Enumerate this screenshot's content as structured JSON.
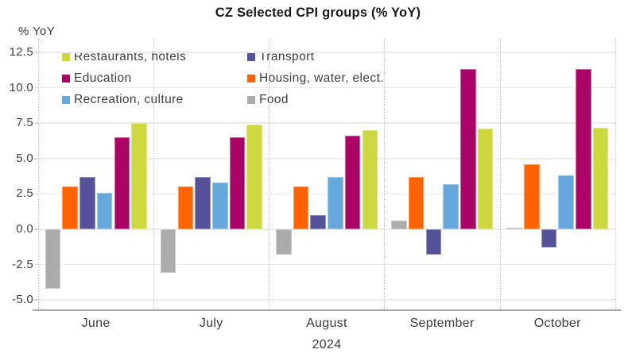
{
  "header": {
    "title": "CZ Selected CPI groups (% YoY)"
  },
  "axis": {
    "y_unit_label": "% YoY",
    "year_label": "2024"
  },
  "chart_data": {
    "type": "bar",
    "title": "CZ Selected CPI groups (% YoY)",
    "ylabel": "% YoY",
    "xlabel": "2024",
    "categories": [
      "June",
      "July",
      "August",
      "September",
      "October"
    ],
    "y_ticks": [
      {
        "v": 12.5,
        "label": "12.5"
      },
      {
        "v": 10.0,
        "label": "10.0"
      },
      {
        "v": 7.5,
        "label": "7.5"
      },
      {
        "v": 5.0,
        "label": "5.0"
      },
      {
        "v": 2.5,
        "label": "2.5"
      },
      {
        "v": 0.0,
        "label": "0.0"
      },
      {
        "v": -2.5,
        "label": "-2.5"
      },
      {
        "v": -5.0,
        "label": "-5.0"
      }
    ],
    "ylim": [
      -5.7,
      13.5
    ],
    "grid": "horizontal solid gridlines, vertical dotted month separators",
    "legend_position": "top-left inside plot, two columns",
    "bar_order_left_to_right": [
      "Food",
      "Housing, water, elect.",
      "Transport",
      "Recreation, culture",
      "Education",
      "Restaurants, hotels"
    ],
    "series": [
      {
        "name": "Food",
        "color": "#ABABAB",
        "values": [
          -4.2,
          -3.1,
          -1.8,
          0.6,
          0.1
        ]
      },
      {
        "name": "Housing, water, elect.",
        "color": "#FF6200",
        "values": [
          3.0,
          3.0,
          3.0,
          3.7,
          4.6
        ]
      },
      {
        "name": "Transport",
        "color": "#55519B",
        "values": [
          3.7,
          3.7,
          1.0,
          -1.8,
          -1.3
        ]
      },
      {
        "name": "Recreation, culture",
        "color": "#64A8DC",
        "values": [
          2.6,
          3.3,
          3.7,
          3.2,
          3.8
        ]
      },
      {
        "name": "Education",
        "color": "#AA0466",
        "values": [
          6.5,
          6.5,
          6.6,
          11.3,
          11.3
        ]
      },
      {
        "name": "Restaurants, hotels",
        "color": "#CDD83E",
        "values": [
          7.5,
          7.4,
          7.0,
          7.1,
          7.2
        ]
      }
    ],
    "legend": [
      {
        "label": "Restaurants, hotels",
        "color": "#CDD83E"
      },
      {
        "label": "Transport",
        "color": "#55519B"
      },
      {
        "label": "Education",
        "color": "#AA0466"
      },
      {
        "label": "Housing, water, elect.",
        "color": "#FF6200"
      },
      {
        "label": "Recreation, culture",
        "color": "#64A8DC"
      },
      {
        "label": "Food",
        "color": "#ABABAB"
      }
    ]
  }
}
